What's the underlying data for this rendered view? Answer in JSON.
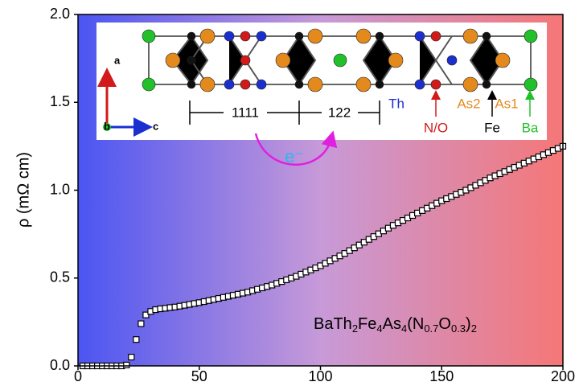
{
  "chart_data": {
    "type": "scatter",
    "ylabel": "ρ (mΩ cm)",
    "xlim": [
      0,
      200
    ],
    "ylim": [
      0,
      2
    ],
    "xticks": [
      0,
      50,
      100,
      150,
      200
    ],
    "yticks": [
      {
        "value": 0,
        "label": "0.0"
      },
      {
        "value": 0.5,
        "label": "0.5"
      },
      {
        "value": 1,
        "label": "1.0"
      },
      {
        "value": 1.5,
        "label": "1.5"
      },
      {
        "value": 2,
        "label": "2.0"
      }
    ],
    "marker_color": "#000000",
    "x": [
      2,
      4,
      6,
      8,
      10,
      12,
      14,
      16,
      18,
      20,
      22,
      24,
      26,
      28,
      30,
      32,
      34,
      36,
      38,
      40,
      42,
      44,
      46,
      48,
      50,
      52,
      54,
      56,
      58,
      60,
      62,
      64,
      66,
      68,
      70,
      72,
      74,
      76,
      78,
      80,
      82,
      84,
      86,
      88,
      90,
      92,
      94,
      96,
      98,
      100,
      102,
      104,
      106,
      108,
      110,
      112,
      114,
      116,
      118,
      120,
      122,
      124,
      126,
      128,
      130,
      132,
      134,
      136,
      138,
      140,
      142,
      144,
      146,
      148,
      150,
      152,
      154,
      156,
      158,
      160,
      162,
      164,
      166,
      168,
      170,
      172,
      174,
      176,
      178,
      180,
      182,
      184,
      186,
      188,
      190,
      192,
      194,
      196,
      198,
      200
    ],
    "values": [
      0,
      0,
      0,
      0,
      0,
      0,
      0,
      0,
      0,
      0.005,
      0.05,
      0.15,
      0.24,
      0.29,
      0.31,
      0.32,
      0.325,
      0.328,
      0.332,
      0.335,
      0.34,
      0.345,
      0.35,
      0.355,
      0.36,
      0.366,
      0.372,
      0.378,
      0.384,
      0.39,
      0.396,
      0.402,
      0.408,
      0.414,
      0.42,
      0.428,
      0.436,
      0.444,
      0.452,
      0.46,
      0.47,
      0.48,
      0.49,
      0.5,
      0.51,
      0.522,
      0.534,
      0.546,
      0.558,
      0.57,
      0.584,
      0.598,
      0.612,
      0.626,
      0.64,
      0.656,
      0.672,
      0.688,
      0.704,
      0.72,
      0.736,
      0.752,
      0.768,
      0.784,
      0.8,
      0.814,
      0.828,
      0.842,
      0.856,
      0.87,
      0.884,
      0.898,
      0.912,
      0.926,
      0.94,
      0.952,
      0.964,
      0.976,
      0.988,
      1.0,
      1.014,
      1.028,
      1.042,
      1.056,
      1.07,
      1.082,
      1.094,
      1.106,
      1.118,
      1.13,
      1.142,
      1.154,
      1.166,
      1.178,
      1.19,
      1.202,
      1.214,
      1.226,
      1.238,
      1.25
    ],
    "annotation": [
      {
        "text": "BaTh",
        "sub": false
      },
      {
        "text": "2",
        "sub": true
      },
      {
        "text": "Fe",
        "sub": false
      },
      {
        "text": "4",
        "sub": true
      },
      {
        "text": "As",
        "sub": false
      },
      {
        "text": "4",
        "sub": true
      },
      {
        "text": "(N",
        "sub": false
      },
      {
        "text": "0.7",
        "sub": true
      },
      {
        "text": "O",
        "sub": false
      },
      {
        "text": "0.3",
        "sub": true
      },
      {
        "text": ")",
        "sub": false
      },
      {
        "text": "2",
        "sub": true
      }
    ],
    "inset": {
      "axes": [
        "a",
        "b",
        "c"
      ],
      "blocks": [
        "1111",
        "122"
      ],
      "atoms": [
        "Th",
        "N/O",
        "As2",
        "As1",
        "Fe",
        "Ba"
      ],
      "electron": "e⁻"
    }
  }
}
